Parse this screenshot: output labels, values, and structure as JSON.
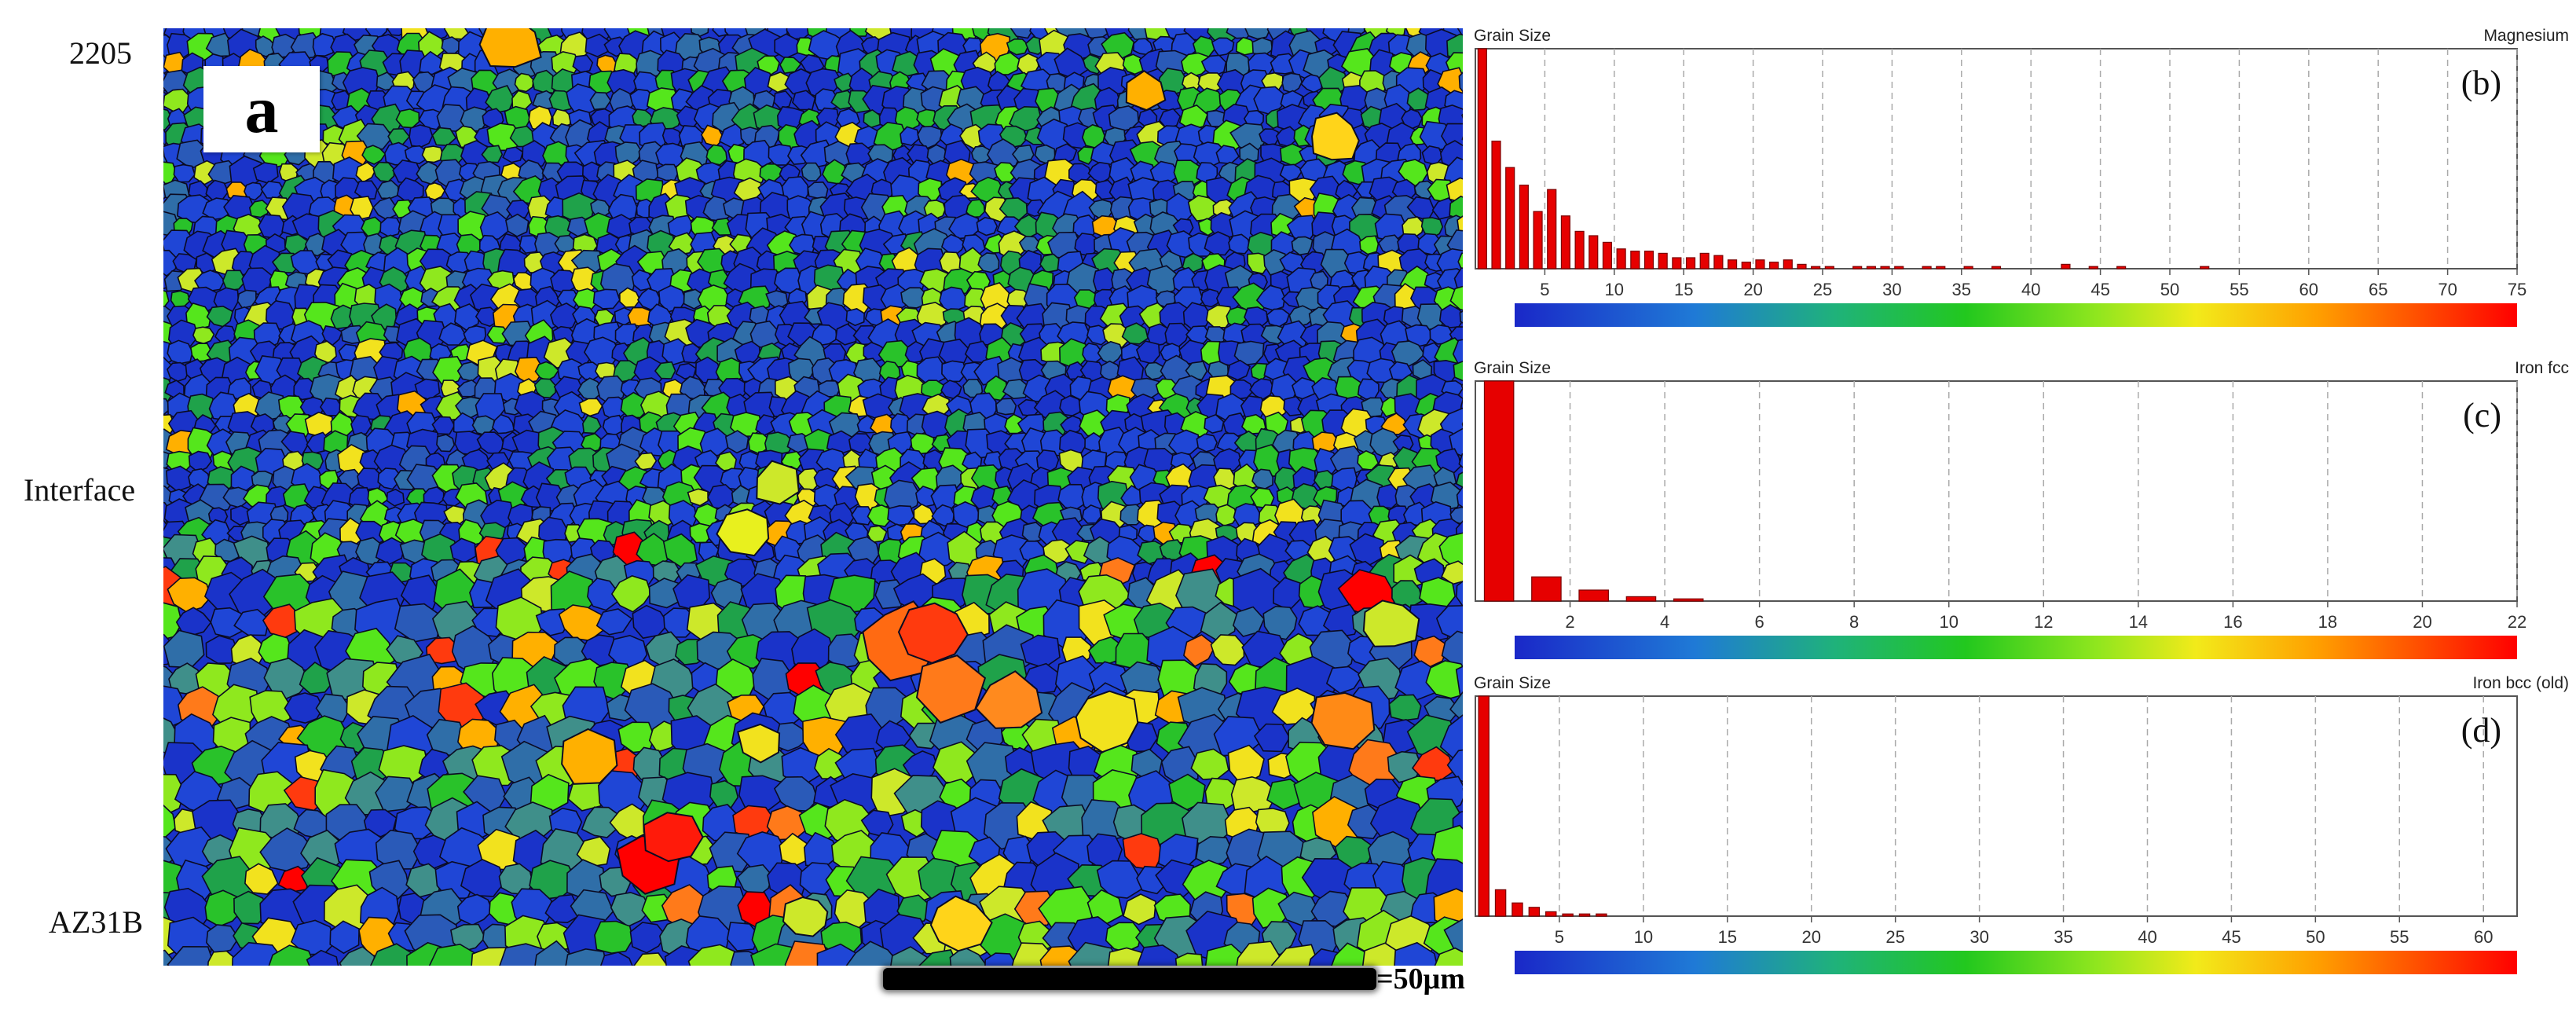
{
  "labels": {
    "top": "2205",
    "middle": "Interface",
    "bottom": "AZ31B",
    "panel_a": "a",
    "scale_bar": "=50μm"
  },
  "colors": {
    "bar": "#e60000",
    "grain_palette": [
      "#1a33c9",
      "#1f46d6",
      "#2a5ab8",
      "#2f6ea8",
      "#3f8f8a",
      "#1fa24a",
      "#29c22a",
      "#55e61c",
      "#8fe81e",
      "#cde82a",
      "#f2e21e",
      "#ffb000",
      "#ff7a1a",
      "#ff3a0e",
      "#ff0000"
    ]
  },
  "chart_data": [
    {
      "type": "bar",
      "title": "Grain Size",
      "phase": "Magnesium",
      "panel_label": "(b)",
      "xlim": [
        0,
        75
      ],
      "ticks": [
        5,
        10,
        15,
        20,
        25,
        30,
        35,
        40,
        45,
        50,
        55,
        60,
        65,
        70,
        75
      ],
      "x": [
        0.5,
        1.5,
        2.5,
        3.5,
        4.5,
        5.5,
        6.5,
        7.5,
        8.5,
        9.5,
        10.5,
        11.5,
        12.5,
        13.5,
        14.5,
        15.5,
        16.5,
        17.5,
        18.5,
        19.5,
        20.5,
        21.5,
        22.5,
        23.5,
        24.5,
        25.5,
        27.5,
        28.5,
        29.5,
        30.5,
        32.5,
        33.5,
        35.5,
        37.5,
        42.5,
        44.5,
        46.5,
        52.5
      ],
      "values": [
        100,
        58,
        46,
        38,
        26,
        36,
        24,
        17,
        15,
        12,
        9,
        8,
        8,
        7,
        5,
        5,
        7,
        6,
        4,
        3,
        4,
        3,
        4,
        2,
        1,
        1,
        1,
        1,
        1,
        1,
        1,
        1,
        1,
        1,
        2,
        1,
        1,
        1
      ],
      "ylim": [
        0,
        100
      ]
    },
    {
      "type": "bar",
      "title": "Grain Size",
      "phase": "Iron fcc",
      "panel_label": "(c)",
      "xlim": [
        0,
        22
      ],
      "ticks": [
        2,
        4,
        6,
        8,
        10,
        12,
        14,
        16,
        18,
        20,
        22
      ],
      "x": [
        0.5,
        1.5,
        2.5,
        3.5,
        4.5
      ],
      "values": [
        100,
        11,
        5,
        2,
        1
      ],
      "ylim": [
        0,
        100
      ]
    },
    {
      "type": "bar",
      "title": "Grain Size",
      "phase": "Iron bcc (old)",
      "panel_label": "(d)",
      "xlim": [
        0,
        62
      ],
      "ticks": [
        5,
        10,
        15,
        20,
        25,
        30,
        35,
        40,
        45,
        50,
        55,
        60
      ],
      "x": [
        0.5,
        1.5,
        2.5,
        3.5,
        4.5,
        5.5,
        6.5,
        7.5
      ],
      "values": [
        100,
        12,
        6,
        4,
        2,
        1,
        1,
        1
      ],
      "ylim": [
        0,
        100
      ]
    }
  ]
}
